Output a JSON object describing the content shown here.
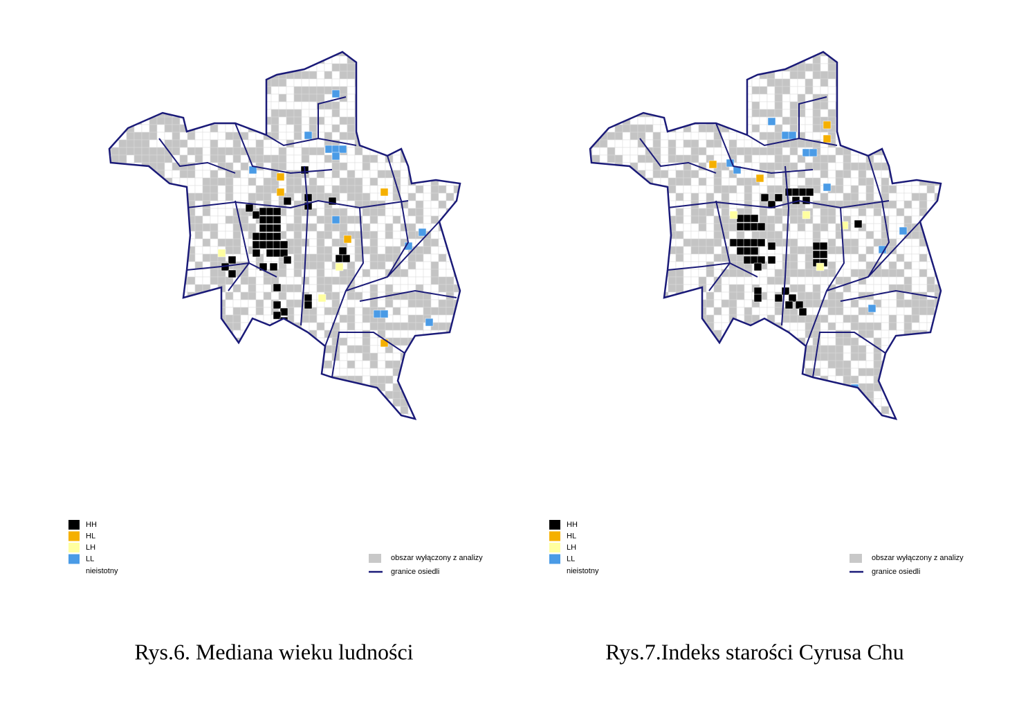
{
  "figures": [
    {
      "caption": "Rys.6. Mediana wieku ludności",
      "legend": {
        "classes": [
          "HH",
          "HL",
          "LH",
          "LL",
          "nieistotny"
        ],
        "other": [
          "obszar wyłączony z analizy",
          "granice osiedli"
        ]
      }
    },
    {
      "caption": "Rys.7.Indeks starości Cyrusa Chu",
      "legend": {
        "classes": [
          "HH",
          "HL",
          "LH",
          "LL",
          "nieistotny"
        ],
        "other": [
          "obszar wyłączony z analizy",
          "granice osiedli"
        ]
      }
    }
  ]
}
